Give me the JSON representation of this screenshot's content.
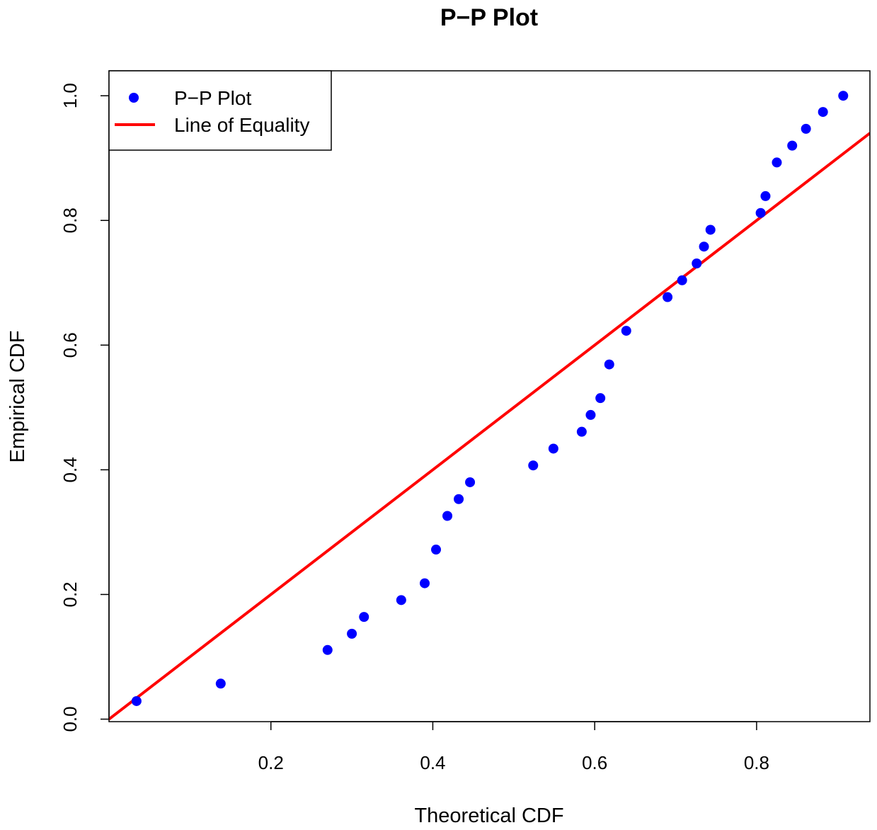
{
  "chart_data": {
    "type": "scatter",
    "title": "P−P Plot",
    "xlabel": "Theoretical CDF",
    "ylabel": "Empirical CDF",
    "xlim": [
      0.0,
      0.94
    ],
    "ylim": [
      -0.004,
      1.04
    ],
    "x_ticks": [
      0.2,
      0.4,
      0.6,
      0.8
    ],
    "x_tick_labels": [
      "0.2",
      "0.4",
      "0.6",
      "0.8"
    ],
    "y_ticks": [
      0.0,
      0.2,
      0.4,
      0.6,
      0.8,
      1.0
    ],
    "y_tick_labels": [
      "0.0",
      "0.2",
      "0.4",
      "0.6",
      "0.8",
      "1.0"
    ],
    "legend": {
      "position": "top-left",
      "entries": [
        {
          "label": "P−P Plot",
          "marker": "point",
          "color": "#0000ff"
        },
        {
          "label": "Line of Equality",
          "marker": "line",
          "color": "#ff0000"
        }
      ]
    },
    "series": [
      {
        "name": "P−P Plot",
        "color": "#0000ff",
        "x": [
          0.034,
          0.138,
          0.27,
          0.3,
          0.315,
          0.361,
          0.39,
          0.404,
          0.418,
          0.432,
          0.446,
          0.524,
          0.549,
          0.584,
          0.595,
          0.607,
          0.618,
          0.639,
          0.69,
          0.708,
          0.726,
          0.735,
          0.743,
          0.805,
          0.811,
          0.825,
          0.844,
          0.861,
          0.882,
          0.907
        ],
        "y": [
          0.029,
          0.057,
          0.111,
          0.137,
          0.164,
          0.191,
          0.218,
          0.272,
          0.326,
          0.353,
          0.38,
          0.407,
          0.434,
          0.461,
          0.488,
          0.515,
          0.569,
          0.623,
          0.677,
          0.704,
          0.731,
          0.758,
          0.785,
          0.812,
          0.839,
          0.893,
          0.92,
          0.947,
          0.974,
          1.0
        ]
      }
    ],
    "reference_line": {
      "name": "Line of Equality",
      "color": "#ff0000",
      "slope": 1,
      "intercept": 0
    }
  }
}
